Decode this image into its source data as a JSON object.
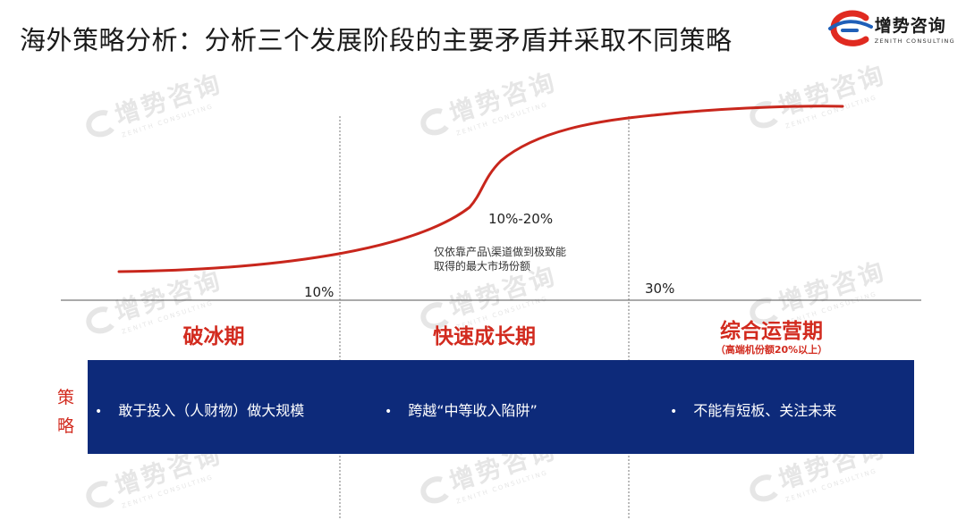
{
  "title": "海外策略分析：分析三个发展阶段的主要矛盾并采取不同策略",
  "logo": {
    "cn": "增势咨询",
    "en": "ZENITH CONSULTING",
    "colors": {
      "red": "#e02a20",
      "blue": "#1f5fb8"
    }
  },
  "watermark": {
    "cn": "增势咨询",
    "en": "ZENITH CONSULTING"
  },
  "curve": {
    "color": "#c8261c",
    "thresholds": [
      "10%",
      "10%-20%",
      "30%"
    ],
    "note_lines": [
      "仅依靠产品\\渠道做到极致能",
      "取得的最大市场份额"
    ]
  },
  "phases": [
    {
      "name": "破冰期",
      "sub": ""
    },
    {
      "name": "快速成长期",
      "sub": ""
    },
    {
      "name": "综合运营期",
      "sub": "（高端机份额20%以上）"
    }
  ],
  "strategy": {
    "label_chars": [
      "策",
      "略"
    ],
    "bullet": "•",
    "items": [
      "敢于投入（人财物）做大规模",
      "跨越“中等收入陷阱”",
      "不能有短板、关注未来"
    ],
    "band_color": "#0d2a7a"
  }
}
